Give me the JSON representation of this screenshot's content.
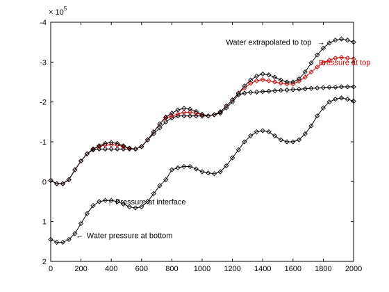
{
  "chart_data": {
    "type": "line",
    "title": "",
    "xlabel": "",
    "ylabel": "",
    "xlim": [
      0,
      2000
    ],
    "ylim": [
      -4,
      2
    ],
    "y_reversed": true,
    "x_ticks": [
      0,
      200,
      400,
      600,
      800,
      1000,
      1200,
      1400,
      1600,
      1800,
      2000
    ],
    "y_ticks": [
      -4,
      -3,
      -2,
      -1,
      0,
      1,
      2
    ],
    "x_tick_labels": [
      "0",
      "200",
      "400",
      "600",
      "800",
      "1000",
      "1200",
      "1400",
      "1600",
      "1800",
      "2000"
    ],
    "y_tick_labels": [
      "-4",
      "-3",
      "-2",
      "-1",
      "0",
      "1",
      "2"
    ],
    "y_exponent": "× 10",
    "y_exponent_power": "5",
    "grid": false,
    "annotations": [
      {
        "text": "Water extrapolated to top",
        "arrow": "→",
        "color": "#000000",
        "x": 1750,
        "y": -3.5
      },
      {
        "text": "Pressure at top",
        "color": "#cc0000",
        "x": 1770,
        "y": -3.0
      },
      {
        "text": "Pressure at interface",
        "arrow": "↑",
        "color": "#000000",
        "x": 390,
        "y": 0.5
      },
      {
        "text": "Water pressure at bottom",
        "arrow": "←",
        "color": "#000000",
        "x": 210,
        "y": 1.35
      }
    ],
    "series": [
      {
        "color": "#000000",
        "x": [
          0,
          40,
          80,
          120,
          160,
          200,
          240,
          280,
          320,
          360,
          400,
          440,
          480,
          520,
          560,
          600,
          640,
          680,
          720,
          760,
          800,
          840,
          880,
          920,
          960,
          1000,
          1040,
          1080,
          1120,
          1160,
          1200,
          1240,
          1280,
          1320,
          1360,
          1400,
          1440,
          1480,
          1520,
          1560,
          1600,
          1640,
          1680,
          1720,
          1760,
          1800,
          1840,
          1880,
          1920,
          1960,
          2000
        ],
        "y": [
          1.45,
          1.52,
          1.52,
          1.45,
          1.3,
          1.05,
          0.8,
          0.6,
          0.5,
          0.47,
          0.47,
          0.5,
          0.56,
          0.63,
          0.66,
          0.63,
          0.5,
          0.3,
          0.1,
          -0.05,
          -0.3,
          -0.35,
          -0.38,
          -0.38,
          -0.32,
          -0.25,
          -0.22,
          -0.2,
          -0.25,
          -0.4,
          -0.6,
          -0.8,
          -1,
          -1.15,
          -1.25,
          -1.28,
          -1.25,
          -1.15,
          -1.05,
          -1.0,
          -1.0,
          -1.05,
          -1.2,
          -1.4,
          -1.65,
          -1.85,
          -2.0,
          -2.07,
          -2.1,
          -2.07,
          -2.02
        ]
      },
      {
        "color": "#000000",
        "x": [
          0,
          40,
          80,
          120,
          160,
          200,
          240,
          280,
          320,
          360,
          400,
          440,
          480,
          520,
          560,
          600,
          640,
          680,
          720,
          760,
          800,
          840,
          880,
          920,
          960,
          1000,
          1040,
          1080,
          1120,
          1160,
          1200,
          1240,
          1280,
          1320,
          1360,
          1400,
          1440,
          1480,
          1520,
          1560,
          1600,
          1640,
          1680,
          1720,
          1760,
          1800,
          1840,
          1880,
          1920,
          1960,
          2000
        ],
        "y": [
          -0.03,
          0.05,
          0.05,
          -0.05,
          -0.3,
          -0.52,
          -0.7,
          -0.8,
          -0.82,
          -0.82,
          -0.82,
          -0.82,
          -0.82,
          -0.82,
          -0.82,
          -0.88,
          -1.05,
          -1.2,
          -1.35,
          -1.5,
          -1.6,
          -1.65,
          -1.65,
          -1.65,
          -1.65,
          -1.65,
          -1.65,
          -1.68,
          -1.72,
          -1.85,
          -2.0,
          -2.18,
          -2.22,
          -2.24,
          -2.25,
          -2.26,
          -2.27,
          -2.28,
          -2.29,
          -2.3,
          -2.31,
          -2.32,
          -2.33,
          -2.34,
          -2.35,
          -2.36,
          -2.37,
          -2.37,
          -2.38,
          -2.38,
          -2.38
        ]
      },
      {
        "color": "#cc0000",
        "x": [
          0,
          40,
          80,
          120,
          160,
          200,
          240,
          280,
          320,
          360,
          400,
          440,
          480,
          520,
          560,
          600,
          640,
          680,
          720,
          760,
          800,
          840,
          880,
          920,
          960,
          1000,
          1040,
          1080,
          1120,
          1160,
          1200,
          1240,
          1280,
          1320,
          1360,
          1400,
          1440,
          1480,
          1520,
          1560,
          1600,
          1640,
          1680,
          1720,
          1760,
          1800,
          1840,
          1880,
          1920,
          1960,
          2000
        ],
        "y": [
          -0.03,
          0.05,
          0.05,
          -0.05,
          -0.3,
          -0.52,
          -0.7,
          -0.82,
          -0.88,
          -0.92,
          -0.93,
          -0.92,
          -0.88,
          -0.83,
          -0.82,
          -0.88,
          -1.05,
          -1.25,
          -1.45,
          -1.6,
          -1.65,
          -1.7,
          -1.74,
          -1.74,
          -1.72,
          -1.68,
          -1.65,
          -1.68,
          -1.75,
          -1.9,
          -2.05,
          -2.22,
          -2.35,
          -2.47,
          -2.53,
          -2.56,
          -2.53,
          -2.5,
          -2.47,
          -2.45,
          -2.45,
          -2.52,
          -2.62,
          -2.75,
          -2.88,
          -2.98,
          -3.05,
          -3.1,
          -3.12,
          -3.1,
          -3.08
        ]
      },
      {
        "color": "#000000",
        "x": [
          0,
          40,
          80,
          120,
          160,
          200,
          240,
          280,
          320,
          360,
          400,
          440,
          480,
          520,
          560,
          600,
          640,
          680,
          720,
          760,
          800,
          840,
          880,
          920,
          960,
          1000,
          1040,
          1080,
          1120,
          1160,
          1200,
          1240,
          1280,
          1320,
          1360,
          1400,
          1440,
          1480,
          1520,
          1560,
          1600,
          1640,
          1680,
          1720,
          1760,
          1800,
          1840,
          1880,
          1920,
          1960,
          2000
        ],
        "y": [
          -0.03,
          0.05,
          0.05,
          -0.05,
          -0.3,
          -0.52,
          -0.7,
          -0.82,
          -0.9,
          -0.96,
          -0.98,
          -0.96,
          -0.9,
          -0.84,
          -0.82,
          -0.88,
          -1.05,
          -1.25,
          -1.45,
          -1.62,
          -1.72,
          -1.8,
          -1.84,
          -1.82,
          -1.76,
          -1.69,
          -1.65,
          -1.68,
          -1.75,
          -1.9,
          -2.05,
          -2.22,
          -2.4,
          -2.55,
          -2.65,
          -2.7,
          -2.68,
          -2.62,
          -2.55,
          -2.5,
          -2.5,
          -2.58,
          -2.75,
          -2.98,
          -3.18,
          -3.35,
          -3.48,
          -3.55,
          -3.58,
          -3.55,
          -3.5
        ]
      }
    ]
  }
}
